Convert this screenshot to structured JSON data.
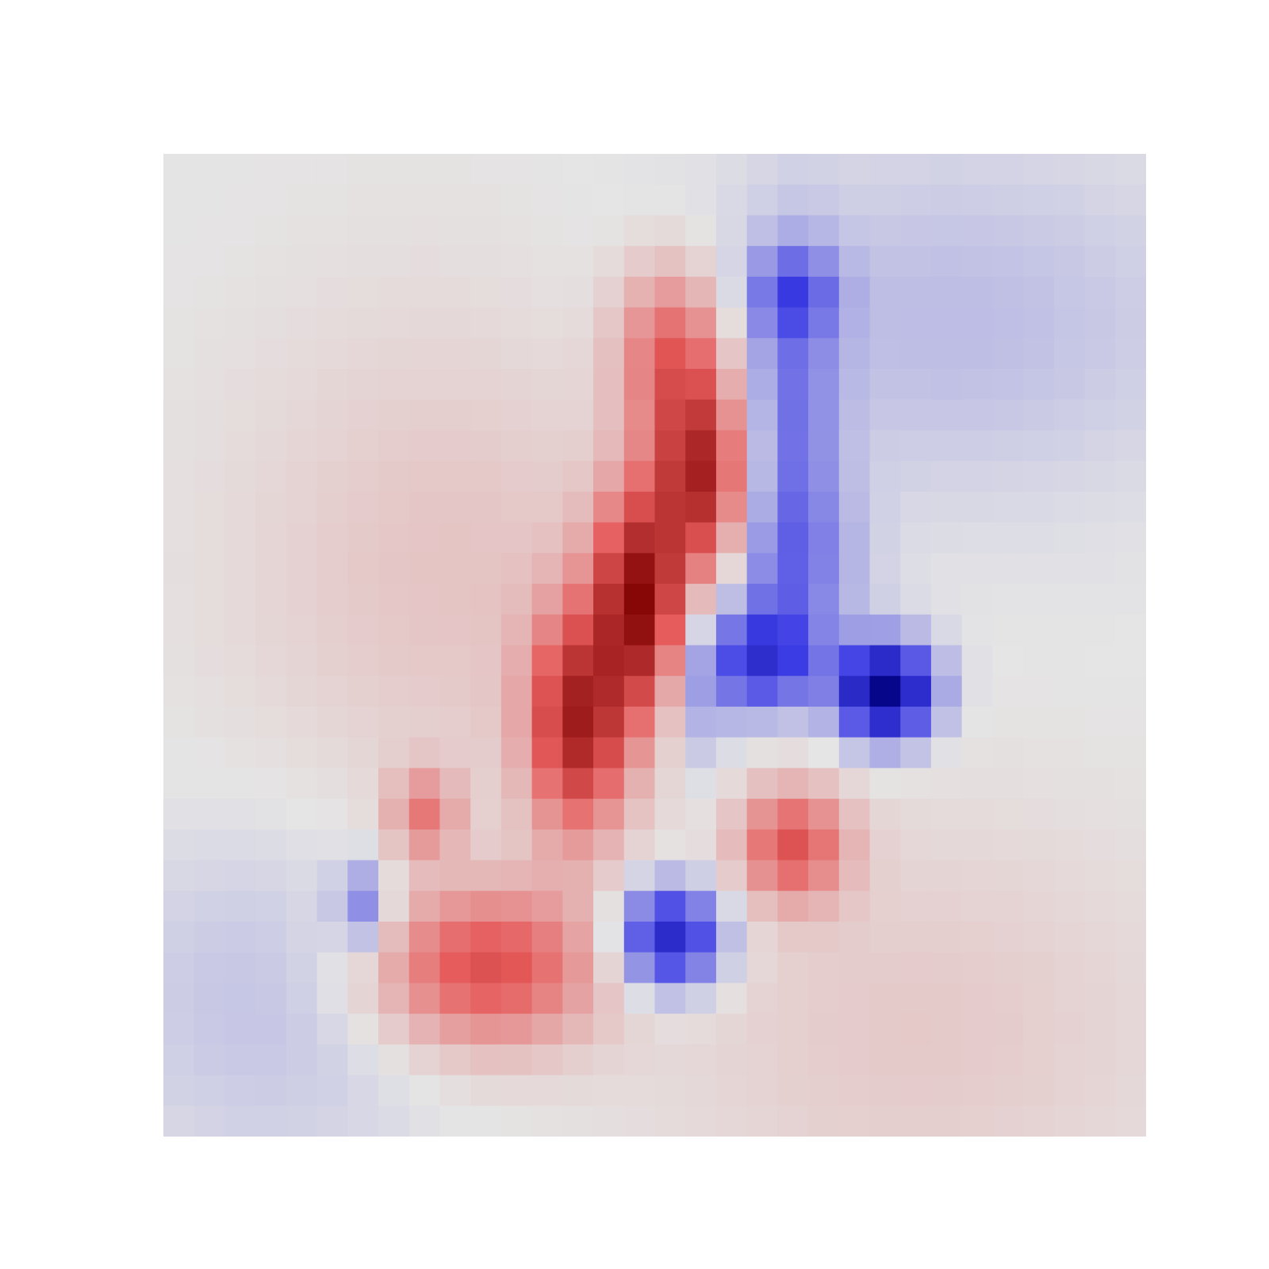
{
  "chart_data": {
    "type": "heatmap",
    "rows": 32,
    "cols": 32,
    "title": "",
    "xlabel": "",
    "ylabel": "",
    "axes_visible": false,
    "grid": false,
    "colorbar": false,
    "colormap": {
      "name": "seismic",
      "low_color": "#00007f",
      "mid_color": "#e5e5e5",
      "high_color": "#7f0000",
      "vmin": -1,
      "vmax": 1
    },
    "blobs": [
      {
        "row": 13,
        "col": 9,
        "amplitude": 0.12,
        "sigma_row": 6.0,
        "sigma_col": 5.0
      },
      {
        "row": 28,
        "col": 24,
        "amplitude": 0.1,
        "sigma_row": 5.0,
        "sigma_col": 6.0
      },
      {
        "row": 5,
        "col": 25,
        "amplitude": -0.12,
        "sigma_row": 4.0,
        "sigma_col": 6.0
      },
      {
        "row": 27,
        "col": 3,
        "amplitude": -0.1,
        "sigma_row": 4.0,
        "sigma_col": 4.0
      },
      {
        "row": 10,
        "col": 17,
        "amplitude": 0.75,
        "sigma_row": 2.2,
        "sigma_col": 1.0
      },
      {
        "row": 14,
        "col": 15,
        "amplitude": 0.85,
        "sigma_row": 2.5,
        "sigma_col": 1.0
      },
      {
        "row": 18,
        "col": 13,
        "amplitude": 0.75,
        "sigma_row": 2.5,
        "sigma_col": 1.1
      },
      {
        "row": 6,
        "col": 16,
        "amplitude": 0.45,
        "sigma_row": 2.0,
        "sigma_col": 1.2
      },
      {
        "row": 21,
        "col": 8,
        "amplitude": 0.35,
        "sigma_row": 1.0,
        "sigma_col": 0.8
      },
      {
        "row": 26,
        "col": 10,
        "amplitude": 0.55,
        "sigma_row": 1.8,
        "sigma_col": 2.5
      },
      {
        "row": 22,
        "col": 20,
        "amplitude": 0.5,
        "sigma_row": 1.3,
        "sigma_col": 1.2
      },
      {
        "row": 17,
        "col": 17,
        "amplitude": -0.2,
        "sigma_row": 2.0,
        "sigma_col": 0.7
      },
      {
        "row": 4,
        "col": 20,
        "amplitude": -0.3,
        "sigma_row": 1.0,
        "sigma_col": 1.0
      },
      {
        "row": 8,
        "col": 20,
        "amplitude": -0.28,
        "sigma_row": 3.5,
        "sigma_col": 1.0
      },
      {
        "row": 13,
        "col": 20,
        "amplitude": -0.28,
        "sigma_row": 2.0,
        "sigma_col": 1.5
      },
      {
        "row": 16,
        "col": 19,
        "amplitude": -0.55,
        "sigma_row": 1.2,
        "sigma_col": 1.2
      },
      {
        "row": 17,
        "col": 23,
        "amplitude": -0.95,
        "sigma_row": 1.1,
        "sigma_col": 1.1
      },
      {
        "row": 25,
        "col": 16,
        "amplitude": -0.7,
        "sigma_row": 1.2,
        "sigma_col": 1.2
      },
      {
        "row": 24,
        "col": 6,
        "amplitude": -0.3,
        "sigma_row": 1.0,
        "sigma_col": 0.6
      }
    ]
  }
}
